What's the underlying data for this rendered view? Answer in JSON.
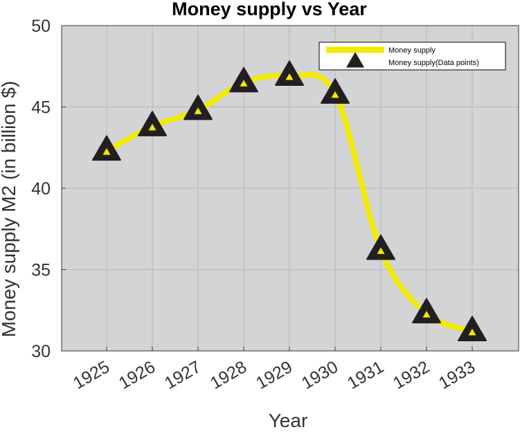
{
  "chart_data": {
    "type": "line",
    "title": "Money supply vs Year",
    "xlabel": "Year",
    "ylabel": "Money supply M2 (in billion $)",
    "categories": [
      "1925",
      "1926",
      "1927",
      "1928",
      "1929",
      "1930",
      "1931",
      "1932",
      "1933"
    ],
    "ylim": [
      30,
      50
    ],
    "yticks": [
      "30",
      "35",
      "40",
      "45",
      "50"
    ],
    "grid": true,
    "legend_position": "top-right",
    "series": [
      {
        "name": "Money supply",
        "marker_name": "Money supply(Data points)",
        "values": [
          42.3,
          43.8,
          44.8,
          46.5,
          46.9,
          45.8,
          36.2,
          32.3,
          31.2
        ]
      }
    ],
    "colors": {
      "line": "#f2ea00",
      "marker_fill": "#231f20",
      "marker_inner": "#f2ea00",
      "plot_bg": "#d3d4d6",
      "grid": "#b5b6b8",
      "axis": "#333333"
    }
  }
}
